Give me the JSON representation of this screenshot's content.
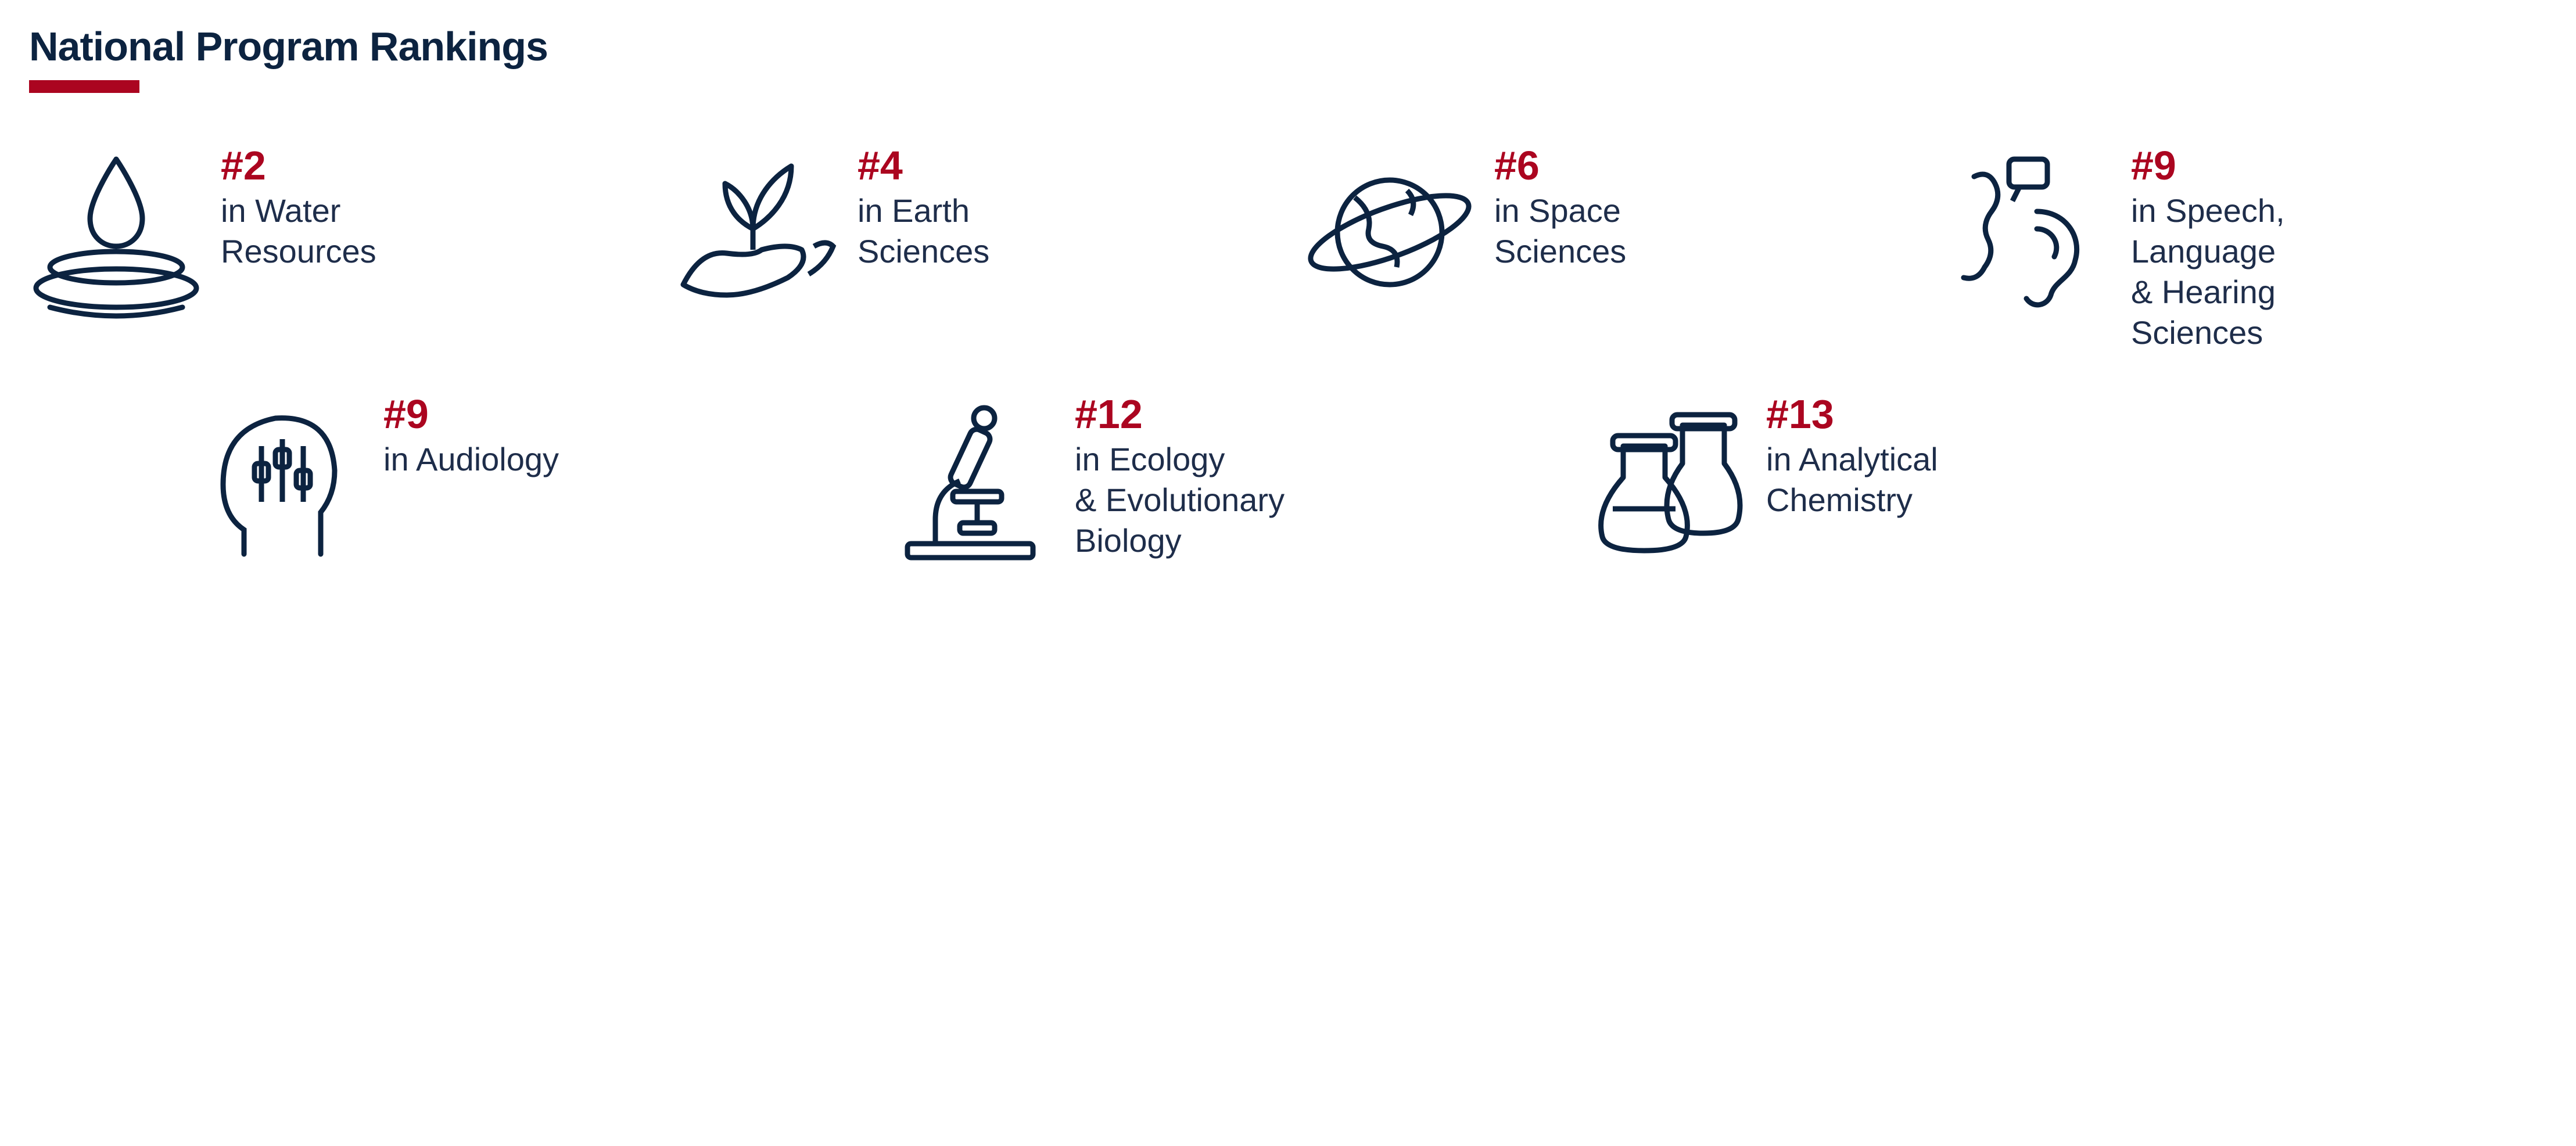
{
  "title": "National Program Rankings",
  "colors": {
    "primary": "#0c2340",
    "accent": "#ab0520",
    "text": "#1e2d4a",
    "background": "#ffffff"
  },
  "typography": {
    "heading_fontsize": 70,
    "heading_fontweight": 800,
    "rank_fontsize": 70,
    "rank_fontweight": 800,
    "desc_fontsize": 56
  },
  "accent_bar": {
    "width": 190,
    "height": 22,
    "color": "#ab0520"
  },
  "layout": {
    "row1_columns": 4,
    "row2_columns": 3,
    "row2_indent": 280,
    "gap_h": 50,
    "gap_v": 70
  },
  "items": [
    {
      "rank": "#2",
      "label": "in Water\nResources",
      "icon": "water-drop-icon",
      "icon_color": "#0c2340"
    },
    {
      "rank": "#4",
      "label": "in Earth\nSciences",
      "icon": "hand-leaf-icon",
      "icon_color": "#0c2340"
    },
    {
      "rank": "#6",
      "label": "in Space\nSciences",
      "icon": "planet-icon",
      "icon_color": "#0c2340"
    },
    {
      "rank": "#9",
      "label": "in Speech,\nLanguage\n& Hearing\nSciences",
      "icon": "speech-hearing-icon",
      "icon_color": "#0c2340"
    },
    {
      "rank": "#9",
      "label": "in Audiology",
      "icon": "head-audio-icon",
      "icon_color": "#0c2340"
    },
    {
      "rank": "#12",
      "label": "in Ecology\n& Evolutionary\nBiology",
      "icon": "microscope-icon",
      "icon_color": "#0c2340"
    },
    {
      "rank": "#13",
      "label": "in Analytical\nChemistry",
      "icon": "flasks-icon",
      "icon_color": "#0c2340"
    }
  ]
}
